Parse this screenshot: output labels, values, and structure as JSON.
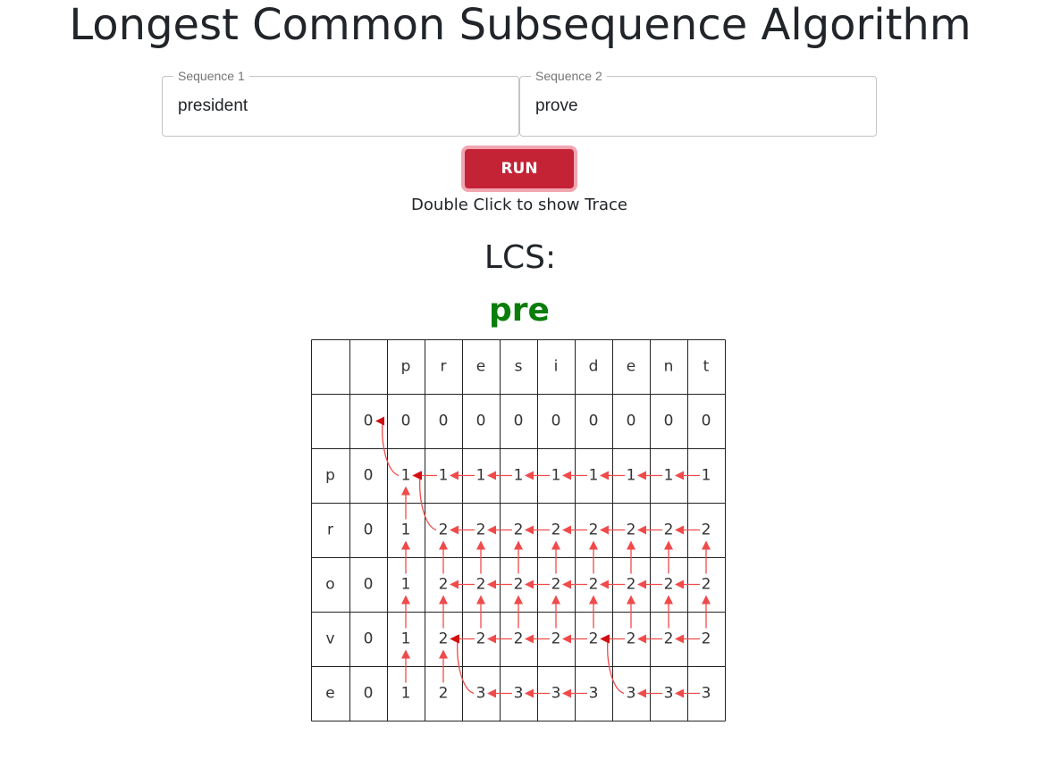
{
  "title": "Longest Common Subsequence Algorithm",
  "inputs": {
    "seq1": {
      "label": "Sequence 1",
      "value": "president"
    },
    "seq2": {
      "label": "Sequence 2",
      "value": "prove"
    }
  },
  "run_button": "RUN",
  "hint": "Double Click to show Trace",
  "lcs_label": "LCS:",
  "lcs_value": "pre",
  "table": {
    "col_headers": [
      "p",
      "r",
      "e",
      "s",
      "i",
      "d",
      "e",
      "n",
      "t"
    ],
    "row_headers": [
      "p",
      "r",
      "o",
      "v",
      "e"
    ],
    "values": [
      [
        0,
        0,
        0,
        0,
        0,
        0,
        0,
        0,
        0,
        0
      ],
      [
        0,
        1,
        1,
        1,
        1,
        1,
        1,
        1,
        1,
        1
      ],
      [
        0,
        1,
        2,
        2,
        2,
        2,
        2,
        2,
        2,
        2
      ],
      [
        0,
        1,
        2,
        2,
        2,
        2,
        2,
        2,
        2,
        2
      ],
      [
        0,
        1,
        2,
        2,
        2,
        2,
        2,
        2,
        2,
        2
      ],
      [
        0,
        1,
        2,
        3,
        3,
        3,
        3,
        3,
        3,
        3
      ]
    ],
    "arrows": {
      "up": [
        [
          2,
          1
        ],
        [
          3,
          1
        ],
        [
          3,
          2
        ],
        [
          3,
          3
        ],
        [
          3,
          4
        ],
        [
          3,
          5
        ],
        [
          3,
          6
        ],
        [
          3,
          7
        ],
        [
          3,
          8
        ],
        [
          3,
          9
        ],
        [
          4,
          1
        ],
        [
          4,
          2
        ],
        [
          4,
          3
        ],
        [
          4,
          4
        ],
        [
          4,
          5
        ],
        [
          4,
          6
        ],
        [
          4,
          7
        ],
        [
          4,
          8
        ],
        [
          4,
          9
        ],
        [
          5,
          1
        ],
        [
          5,
          2
        ]
      ],
      "left": [
        [
          1,
          2
        ],
        [
          1,
          3
        ],
        [
          1,
          4
        ],
        [
          1,
          5
        ],
        [
          1,
          6
        ],
        [
          1,
          7
        ],
        [
          1,
          8
        ],
        [
          1,
          9
        ],
        [
          2,
          3
        ],
        [
          2,
          4
        ],
        [
          2,
          5
        ],
        [
          2,
          6
        ],
        [
          2,
          7
        ],
        [
          2,
          8
        ],
        [
          2,
          9
        ],
        [
          3,
          3
        ],
        [
          3,
          4
        ],
        [
          3,
          5
        ],
        [
          3,
          6
        ],
        [
          3,
          7
        ],
        [
          3,
          8
        ],
        [
          3,
          9
        ],
        [
          4,
          3
        ],
        [
          4,
          4
        ],
        [
          4,
          5
        ],
        [
          4,
          6
        ],
        [
          4,
          7
        ],
        [
          4,
          8
        ],
        [
          4,
          9
        ],
        [
          5,
          4
        ],
        [
          5,
          5
        ],
        [
          5,
          6
        ],
        [
          5,
          8
        ],
        [
          5,
          9
        ]
      ],
      "diag": [
        [
          1,
          1
        ],
        [
          2,
          2
        ],
        [
          5,
          3
        ],
        [
          5,
          7
        ]
      ]
    },
    "colors": {
      "arrow": "#f04a4a",
      "arrow_dark": "#d10f0f",
      "lcs": "#0a7d0a",
      "button": "#c42235"
    }
  }
}
